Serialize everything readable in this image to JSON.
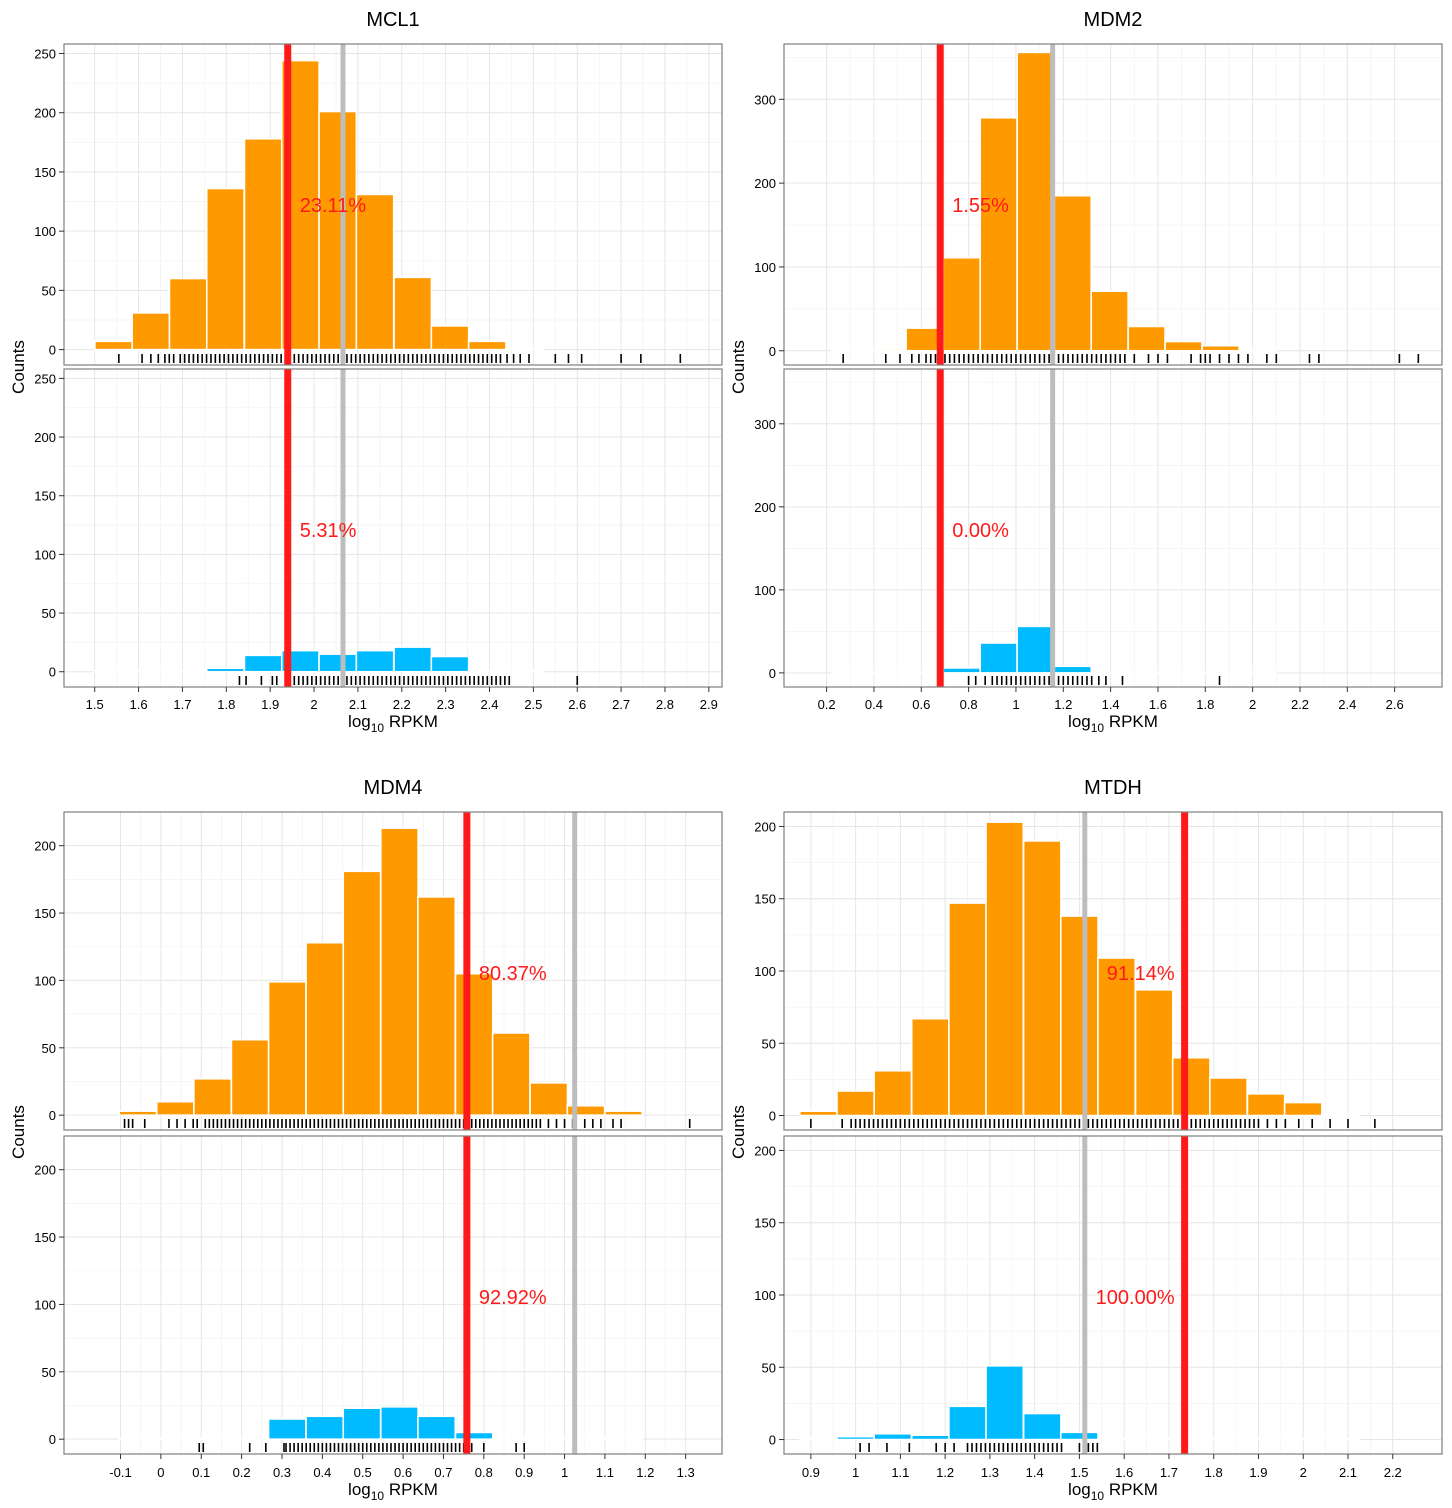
{
  "chart_data": [
    {
      "type": "bar",
      "title": "MCL1",
      "xlabel": "log",
      "xlabel_sub": "10",
      "xlabel_suffix": " RPKM",
      "ylabel": "Counts",
      "xlim": [
        1.43,
        2.93
      ],
      "ylim": [
        -13,
        258
      ],
      "x_ticks": [
        1.5,
        1.6,
        1.7,
        1.8,
        1.9,
        2,
        2.1,
        2.2,
        2.3,
        2.4,
        2.5,
        2.6,
        2.7,
        2.8,
        2.9
      ],
      "x_tick_labels": [
        "1.5",
        "1.6",
        "1.7",
        "1.8",
        "1.9",
        "2",
        "2.1",
        "2.2",
        "2.3",
        "2.4",
        "2.5",
        "2.6",
        "2.7",
        "2.8",
        "2.9"
      ],
      "y_ticks": [
        0,
        50,
        100,
        150,
        200,
        250
      ],
      "y_tick_labels": [
        "0",
        "50",
        "100",
        "150",
        "200",
        "250"
      ],
      "bin_width": 0.0852,
      "red_line": 1.94,
      "grey_line": 2.066,
      "panels": [
        {
          "color": "#ff9900",
          "annotation": "23.11%",
          "bins": [
            1.543,
            1.628,
            1.713,
            1.798,
            1.884,
            1.969,
            2.054,
            2.139,
            2.225,
            2.31,
            2.395,
            2.48
          ],
          "counts": [
            7,
            31,
            60,
            136,
            178,
            244,
            201,
            131,
            61,
            20,
            7,
            0
          ],
          "rug": [
            1.555,
            1.608,
            1.628,
            1.645,
            1.66,
            1.67,
            1.68,
            1.695,
            1.705,
            1.715,
            1.725,
            1.735,
            1.745,
            1.755,
            1.765,
            1.775,
            1.785,
            1.795,
            1.805,
            1.815,
            1.825,
            1.835,
            1.845,
            1.855,
            1.865,
            1.875,
            1.885,
            1.895,
            1.905,
            1.915,
            1.925,
            1.935,
            1.945,
            1.955,
            1.965,
            1.975,
            1.985,
            1.995,
            2.005,
            2.015,
            2.025,
            2.035,
            2.045,
            2.055,
            2.065,
            2.075,
            2.085,
            2.095,
            2.105,
            2.115,
            2.125,
            2.135,
            2.145,
            2.155,
            2.165,
            2.175,
            2.185,
            2.195,
            2.205,
            2.215,
            2.225,
            2.235,
            2.245,
            2.255,
            2.265,
            2.275,
            2.285,
            2.295,
            2.305,
            2.315,
            2.325,
            2.335,
            2.345,
            2.355,
            2.365,
            2.375,
            2.385,
            2.395,
            2.405,
            2.415,
            2.425,
            2.44,
            2.455,
            2.47,
            2.49,
            2.55,
            2.58,
            2.61,
            2.7,
            2.745,
            2.835
          ]
        },
        {
          "color": "#00bbff",
          "annotation": "5.31%",
          "bins": [
            1.543,
            1.628,
            1.713,
            1.798,
            1.884,
            1.969,
            2.054,
            2.139,
            2.225,
            2.31,
            2.395,
            2.48
          ],
          "counts": [
            0,
            0,
            0,
            3,
            14,
            18,
            15,
            18,
            21,
            13,
            0,
            0
          ],
          "rug": [
            1.83,
            1.845,
            1.88,
            1.905,
            1.915,
            1.935,
            1.945,
            1.955,
            1.965,
            1.975,
            1.985,
            1.995,
            2.005,
            2.015,
            2.025,
            2.035,
            2.045,
            2.055,
            2.065,
            2.075,
            2.085,
            2.095,
            2.105,
            2.115,
            2.125,
            2.135,
            2.145,
            2.155,
            2.165,
            2.175,
            2.185,
            2.195,
            2.205,
            2.215,
            2.225,
            2.235,
            2.245,
            2.255,
            2.265,
            2.275,
            2.285,
            2.295,
            2.305,
            2.315,
            2.325,
            2.335,
            2.345,
            2.355,
            2.365,
            2.375,
            2.385,
            2.395,
            2.405,
            2.415,
            2.425,
            2.435,
            2.445,
            2.6
          ]
        }
      ]
    },
    {
      "type": "bar",
      "title": "MDM2",
      "xlabel": "log",
      "xlabel_sub": "10",
      "xlabel_suffix": " RPKM",
      "ylabel": "Counts",
      "xlim": [
        0.02,
        2.8
      ],
      "ylim": [
        -17,
        366
      ],
      "x_ticks": [
        0.2,
        0.4,
        0.6,
        0.8,
        1,
        1.2,
        1.4,
        1.6,
        1.8,
        2,
        2.2,
        2.4,
        2.6
      ],
      "x_tick_labels": [
        "0.2",
        "0.4",
        "0.6",
        "0.8",
        "1",
        "1.2",
        "1.4",
        "1.6",
        "1.8",
        "2",
        "2.2",
        "2.4",
        "2.6"
      ],
      "y_ticks": [
        0,
        100,
        200,
        300
      ],
      "y_tick_labels": [
        "0",
        "100",
        "200",
        "300"
      ],
      "bin_width": 0.156,
      "red_line": 0.68,
      "grey_line": 1.155,
      "panels": [
        {
          "color": "#ff9900",
          "annotation": "1.55%",
          "bins": [
            0.302,
            0.458,
            0.614,
            0.771,
            0.927,
            1.083,
            1.24,
            1.396,
            1.552,
            1.708,
            1.865,
            2.021
          ],
          "counts": [
            1,
            2,
            27,
            111,
            278,
            356,
            185,
            71,
            29,
            11,
            6,
            0
          ],
          "rug": [
            0.27,
            0.45,
            0.51,
            0.56,
            0.59,
            0.62,
            0.64,
            0.66,
            0.7,
            0.72,
            0.74,
            0.76,
            0.78,
            0.8,
            0.82,
            0.84,
            0.86,
            0.88,
            0.9,
            0.92,
            0.94,
            0.96,
            0.98,
            1.0,
            1.02,
            1.04,
            1.06,
            1.08,
            1.1,
            1.12,
            1.14,
            1.16,
            1.18,
            1.2,
            1.22,
            1.24,
            1.26,
            1.28,
            1.3,
            1.32,
            1.34,
            1.36,
            1.38,
            1.4,
            1.42,
            1.44,
            1.46,
            1.5,
            1.56,
            1.6,
            1.64,
            1.74,
            1.78,
            1.8,
            1.82,
            1.86,
            1.9,
            1.94,
            1.98,
            2.06,
            2.1,
            2.24,
            2.28,
            2.62,
            2.7
          ]
        },
        {
          "color": "#00bbff",
          "annotation": "0.00%",
          "bins": [
            0.302,
            0.458,
            0.614,
            0.771,
            0.927,
            1.083,
            1.24,
            1.396,
            1.552,
            1.708,
            1.865,
            2.021
          ],
          "counts": [
            0,
            0,
            0,
            6,
            36,
            56,
            8,
            0,
            0,
            0,
            0,
            0
          ],
          "rug": [
            0.8,
            0.83,
            0.87,
            0.9,
            0.92,
            0.94,
            0.96,
            0.98,
            1.0,
            1.02,
            1.04,
            1.06,
            1.08,
            1.1,
            1.12,
            1.14,
            1.16,
            1.18,
            1.2,
            1.22,
            1.24,
            1.26,
            1.28,
            1.3,
            1.32,
            1.35,
            1.38,
            1.45,
            1.86
          ]
        }
      ]
    },
    {
      "type": "bar",
      "title": "MDM4",
      "xlabel": "log",
      "xlabel_sub": "10",
      "xlabel_suffix": " RPKM",
      "ylabel": "Counts",
      "xlim": [
        -0.24,
        1.39
      ],
      "ylim": [
        -11,
        225
      ],
      "x_ticks": [
        -0.1,
        0,
        0.1,
        0.2,
        0.3,
        0.4,
        0.5,
        0.6,
        0.7,
        0.8,
        0.9,
        1,
        1.1,
        1.2,
        1.3
      ],
      "x_tick_labels": [
        "-0.1",
        "0",
        "0.1",
        "0.2",
        "0.3",
        "0.4",
        "0.5",
        "0.6",
        "0.7",
        "0.8",
        "0.9",
        "1",
        "1.1",
        "1.2",
        "1.3"
      ],
      "y_ticks": [
        0,
        50,
        100,
        150,
        200
      ],
      "y_tick_labels": [
        "0",
        "50",
        "100",
        "150",
        "200"
      ],
      "bin_width": 0.0925,
      "red_line": 0.758,
      "grey_line": 1.025,
      "panels": [
        {
          "color": "#ff9900",
          "annotation": "80.37%",
          "bins": [
            -0.057,
            0.036,
            0.128,
            0.221,
            0.313,
            0.406,
            0.498,
            0.591,
            0.683,
            0.776,
            0.868,
            0.961,
            1.053,
            1.146
          ],
          "counts": [
            3,
            10,
            27,
            56,
            99,
            128,
            181,
            213,
            162,
            105,
            61,
            24,
            7,
            3
          ],
          "rug": [
            -0.09,
            -0.08,
            -0.07,
            -0.04,
            0.02,
            0.04,
            0.06,
            0.08,
            0.09,
            0.11,
            0.12,
            0.13,
            0.14,
            0.15,
            0.16,
            0.17,
            0.18,
            0.19,
            0.2,
            0.21,
            0.22,
            0.23,
            0.24,
            0.25,
            0.26,
            0.27,
            0.28,
            0.29,
            0.3,
            0.31,
            0.32,
            0.33,
            0.34,
            0.35,
            0.36,
            0.37,
            0.38,
            0.39,
            0.4,
            0.41,
            0.42,
            0.43,
            0.44,
            0.45,
            0.46,
            0.47,
            0.48,
            0.49,
            0.5,
            0.51,
            0.52,
            0.53,
            0.54,
            0.55,
            0.56,
            0.57,
            0.58,
            0.59,
            0.6,
            0.61,
            0.62,
            0.63,
            0.64,
            0.65,
            0.66,
            0.67,
            0.68,
            0.69,
            0.7,
            0.71,
            0.72,
            0.73,
            0.74,
            0.75,
            0.76,
            0.77,
            0.78,
            0.79,
            0.8,
            0.81,
            0.82,
            0.83,
            0.84,
            0.85,
            0.86,
            0.87,
            0.88,
            0.89,
            0.9,
            0.91,
            0.92,
            0.93,
            0.94,
            0.96,
            0.98,
            1.0,
            1.02,
            1.05,
            1.07,
            1.09,
            1.12,
            1.14,
            1.31
          ]
        },
        {
          "color": "#00bbff",
          "annotation": "92.92%",
          "bins": [
            -0.057,
            0.036,
            0.128,
            0.221,
            0.313,
            0.406,
            0.498,
            0.591,
            0.683,
            0.776,
            0.868,
            0.961,
            1.053,
            1.146
          ],
          "counts": [
            0,
            1,
            0,
            1,
            15,
            17,
            23,
            24,
            17,
            5,
            1,
            0,
            0,
            0
          ],
          "rug": [
            0.095,
            0.105,
            0.22,
            0.26,
            0.305,
            0.31,
            0.32,
            0.33,
            0.34,
            0.35,
            0.36,
            0.37,
            0.38,
            0.39,
            0.4,
            0.41,
            0.42,
            0.43,
            0.44,
            0.45,
            0.46,
            0.47,
            0.48,
            0.49,
            0.5,
            0.51,
            0.52,
            0.53,
            0.54,
            0.55,
            0.56,
            0.57,
            0.58,
            0.59,
            0.6,
            0.61,
            0.62,
            0.63,
            0.64,
            0.65,
            0.66,
            0.67,
            0.68,
            0.69,
            0.7,
            0.71,
            0.72,
            0.73,
            0.74,
            0.75,
            0.76,
            0.77,
            0.8,
            0.88,
            0.9
          ]
        }
      ]
    },
    {
      "type": "bar",
      "title": "MTDH",
      "xlabel": "log",
      "xlabel_sub": "10",
      "xlabel_suffix": " RPKM",
      "ylabel": "Counts",
      "xlim": [
        0.84,
        2.31
      ],
      "ylim": [
        -10,
        210
      ],
      "x_ticks": [
        0.9,
        1,
        1.1,
        1.2,
        1.3,
        1.4,
        1.5,
        1.6,
        1.7,
        1.8,
        1.9,
        2,
        2.1,
        2.2
      ],
      "x_tick_labels": [
        "0.9",
        "1",
        "1.1",
        "1.2",
        "1.3",
        "1.4",
        "1.5",
        "1.6",
        "1.7",
        "1.8",
        "1.9",
        "2",
        "2.1",
        "2.2"
      ],
      "y_ticks": [
        0,
        50,
        100,
        150,
        200
      ],
      "y_tick_labels": [
        "0",
        "50",
        "100",
        "150",
        "200"
      ],
      "bin_width": 0.0833,
      "red_line": 1.735,
      "grey_line": 1.512,
      "panels": [
        {
          "color": "#ff9900",
          "annotation": "91.14%",
          "bins": [
            0.917,
            1.0,
            1.083,
            1.167,
            1.25,
            1.333,
            1.417,
            1.5,
            1.583,
            1.667,
            1.75,
            1.833,
            1.917,
            2.0,
            2.083
          ],
          "counts": [
            3,
            17,
            31,
            67,
            147,
            203,
            190,
            138,
            109,
            87,
            40,
            26,
            15,
            9,
            1
          ],
          "rug": [
            0.9,
            0.97,
            0.99,
            1.0,
            1.01,
            1.02,
            1.03,
            1.04,
            1.05,
            1.06,
            1.07,
            1.08,
            1.09,
            1.1,
            1.11,
            1.12,
            1.13,
            1.14,
            1.15,
            1.16,
            1.17,
            1.18,
            1.19,
            1.2,
            1.21,
            1.22,
            1.23,
            1.24,
            1.25,
            1.26,
            1.27,
            1.28,
            1.29,
            1.3,
            1.31,
            1.32,
            1.33,
            1.34,
            1.35,
            1.36,
            1.37,
            1.38,
            1.39,
            1.4,
            1.41,
            1.42,
            1.43,
            1.44,
            1.45,
            1.46,
            1.47,
            1.48,
            1.49,
            1.5,
            1.51,
            1.52,
            1.53,
            1.54,
            1.55,
            1.56,
            1.57,
            1.58,
            1.59,
            1.6,
            1.61,
            1.62,
            1.63,
            1.64,
            1.65,
            1.66,
            1.67,
            1.68,
            1.69,
            1.7,
            1.71,
            1.72,
            1.73,
            1.74,
            1.75,
            1.76,
            1.77,
            1.78,
            1.79,
            1.8,
            1.81,
            1.82,
            1.83,
            1.84,
            1.85,
            1.86,
            1.87,
            1.88,
            1.89,
            1.9,
            1.92,
            1.94,
            1.96,
            1.99,
            2.02,
            2.06,
            2.1,
            2.16
          ]
        },
        {
          "color": "#00bbff",
          "annotation": "100.00%",
          "bins": [
            0.917,
            1.0,
            1.083,
            1.167,
            1.25,
            1.333,
            1.417,
            1.5,
            1.583,
            1.667,
            1.75,
            1.833,
            1.917,
            2.0,
            2.083
          ],
          "counts": [
            0,
            2,
            4,
            3,
            23,
            51,
            18,
            5,
            0,
            0,
            0,
            0,
            0,
            0,
            0
          ],
          "rug": [
            1.01,
            1.03,
            1.07,
            1.12,
            1.18,
            1.2,
            1.22,
            1.25,
            1.26,
            1.27,
            1.28,
            1.29,
            1.3,
            1.31,
            1.32,
            1.33,
            1.34,
            1.35,
            1.36,
            1.37,
            1.38,
            1.39,
            1.4,
            1.41,
            1.42,
            1.43,
            1.44,
            1.45,
            1.46,
            1.5,
            1.52,
            1.53,
            1.54
          ]
        }
      ]
    }
  ]
}
